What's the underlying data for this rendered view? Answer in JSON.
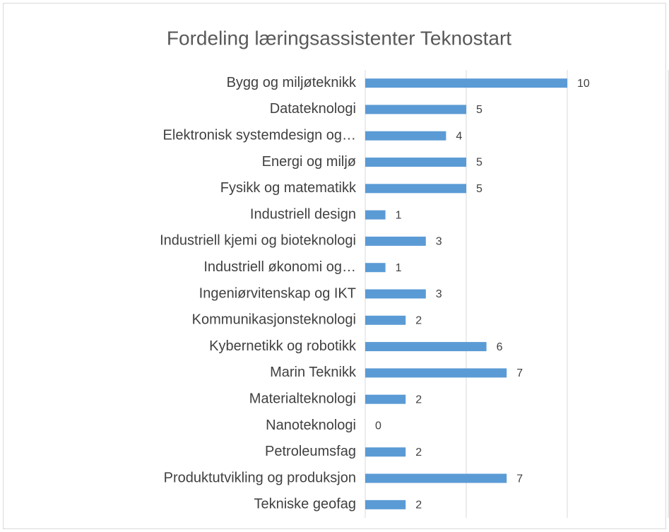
{
  "chart_data": {
    "type": "barh",
    "title": "Fordeling læringsassistenter Teknostart",
    "categories": [
      "Bygg og miljøteknikk",
      "Datateknologi",
      "Elektronisk systemdesign og…",
      "Energi og miljø",
      "Fysikk og matematikk",
      "Industriell design",
      "Industriell kjemi og bioteknologi",
      "Industriell økonomi og…",
      "Ingeniørvitenskap og IKT",
      "Kommunikasjonsteknologi",
      "Kybernetikk og robotikk",
      "Marin Teknikk",
      "Materialteknologi",
      "Nanoteknologi",
      "Petroleumsfag",
      "Produktutvikling og produksjon",
      "Tekniske geofag"
    ],
    "values": [
      10,
      5,
      4,
      5,
      5,
      1,
      3,
      1,
      3,
      2,
      6,
      7,
      2,
      0,
      2,
      7,
      2
    ],
    "color": "#5b9bd5",
    "xlim": [
      0,
      15
    ],
    "xticks": [
      0,
      5,
      10,
      15
    ],
    "grid": true
  }
}
